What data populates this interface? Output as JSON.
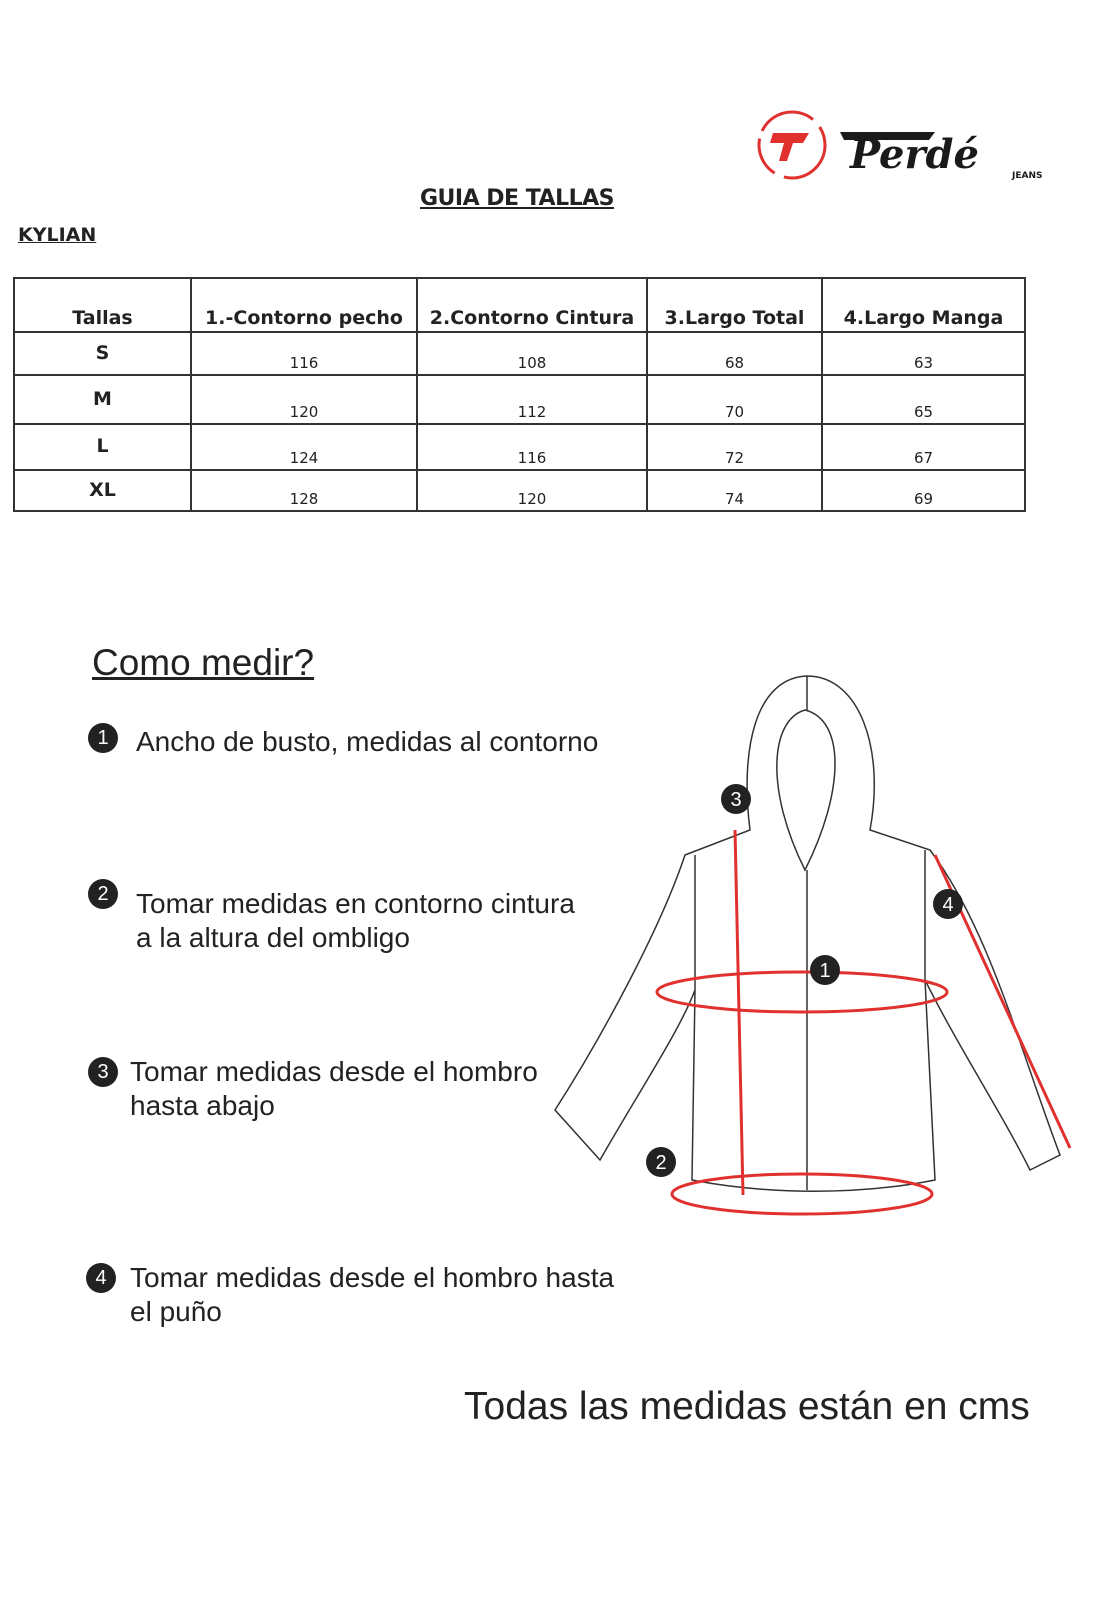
{
  "brand": {
    "name": "Perdé",
    "sub": "JEANS",
    "colors": {
      "red": "#e0312f",
      "black": "#1a1a1a"
    }
  },
  "title": "GUIA DE TALLAS",
  "product": "KYLIAN",
  "table": {
    "headers": [
      "Tallas",
      "1.-Contorno pecho",
      "2.Contorno Cintura",
      "3.Largo Total",
      "4.Largo Manga"
    ],
    "rows": [
      [
        "S",
        "116",
        "108",
        "68",
        "63"
      ],
      [
        "M",
        "120",
        "112",
        "70",
        "65"
      ],
      [
        "L",
        "124",
        "116",
        "72",
        "67"
      ],
      [
        "XL",
        "128",
        "120",
        "74",
        "69"
      ]
    ]
  },
  "how_to": {
    "title": "Como medir?",
    "steps": [
      {
        "num": "1",
        "text": "Ancho de busto, medidas al contorno"
      },
      {
        "num": "2",
        "text": "Tomar medidas en contorno cintura\na la altura del ombligo"
      },
      {
        "num": "3",
        "text": "Tomar medidas desde el hombro\nhasta abajo"
      },
      {
        "num": "4",
        "text": "Tomar medidas desde el hombro hasta\nel puño"
      }
    ]
  },
  "diagram_labels": [
    "1",
    "2",
    "3",
    "4"
  ],
  "note": "Todas las medidas están en cms"
}
